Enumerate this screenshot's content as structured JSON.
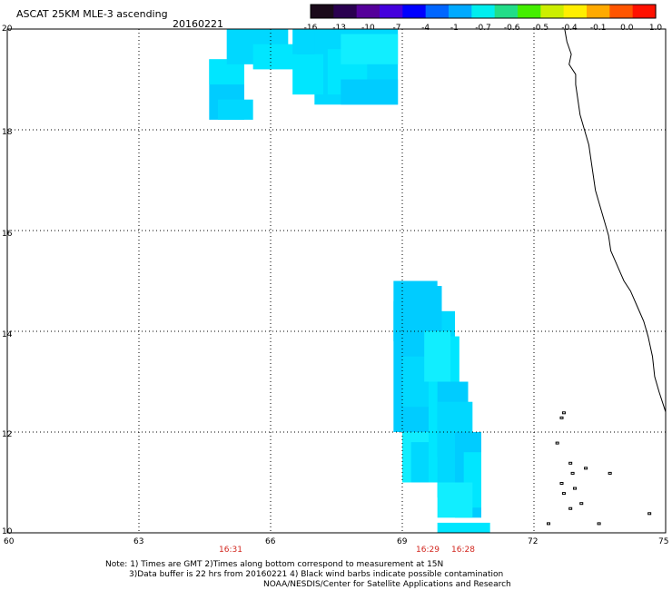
{
  "header": {
    "title": "ASCAT 25KM MLE-3 ascending",
    "date": "20160221"
  },
  "colorbar": {
    "labels": [
      "-16",
      "-13",
      "-10",
      "-7",
      "-4",
      "-1",
      "-0.7",
      "-0.6",
      "-0.5",
      "-0.4",
      "-0.1",
      "0.0",
      "1.0"
    ],
    "colors": [
      "#1a0a1a",
      "#2a0050",
      "#55009a",
      "#4400dd",
      "#0000ff",
      "#0066ff",
      "#00aaff",
      "#00eeee",
      "#22dd88",
      "#44ee00",
      "#ccee00",
      "#ffee00",
      "#ffaa00",
      "#ff5500",
      "#ff1100"
    ]
  },
  "map": {
    "lat_labels": [
      "20",
      "18",
      "16",
      "14",
      "12",
      "10"
    ],
    "lon_labels": [
      "60",
      "63",
      "66",
      "69",
      "72",
      "75"
    ],
    "lon_range": [
      60,
      75
    ],
    "lat_range": [
      10,
      20
    ],
    "swath_colors": [
      "#00ccff",
      "#00d8ff",
      "#00e6ff",
      "#11eeff"
    ],
    "coastline_color": "#000000",
    "grid": "dotted"
  },
  "swath_times": [
    "16:31",
    "16:29",
    "16:28"
  ],
  "notes": {
    "line1": "Note: 1) Times are GMT 2)Times along bottom correspond to measurement at 15N",
    "line2": "3)Data buffer is 22 hrs from 20160221 4) Black wind barbs indicate possible contamination",
    "line3": "NOAA/NESDIS/Center for Satellite Applications and Research"
  }
}
